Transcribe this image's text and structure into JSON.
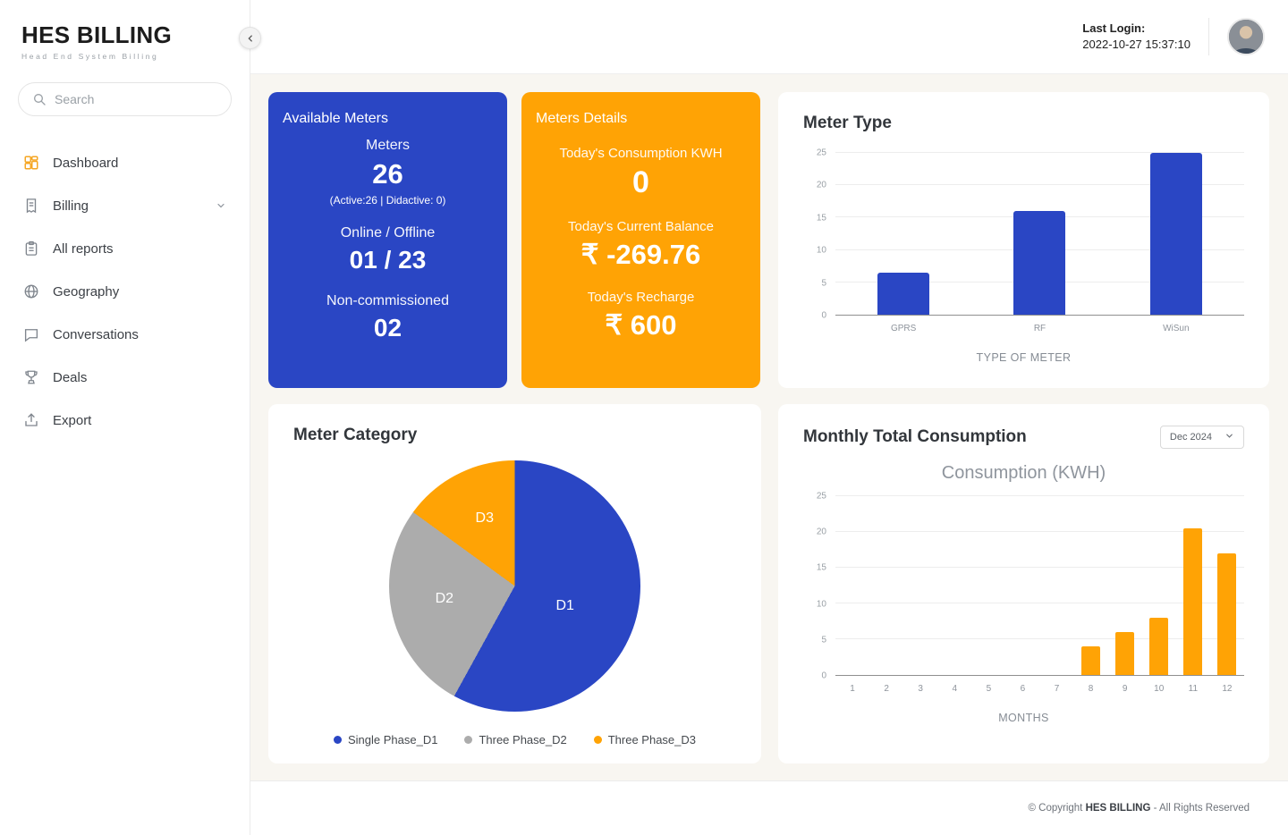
{
  "brand": {
    "name_primary": "HES",
    "name_secondary": " BILLING",
    "tagline": "Head End System Billing"
  },
  "header": {
    "last_login_label": "Last Login:",
    "last_login_value": "2022-10-27 15:37:10"
  },
  "sidebar": {
    "search_placeholder": "Search",
    "items": [
      {
        "label": "Dashboard",
        "icon": "dashboard-icon"
      },
      {
        "label": "Billing",
        "icon": "billing-icon",
        "expandable": true
      },
      {
        "label": "All reports",
        "icon": "reports-icon"
      },
      {
        "label": "Geography",
        "icon": "globe-icon"
      },
      {
        "label": "Conversations",
        "icon": "chat-icon"
      },
      {
        "label": "Deals",
        "icon": "deals-icon"
      },
      {
        "label": "Export",
        "icon": "export-icon"
      }
    ]
  },
  "summary_cards": {
    "available_meters": {
      "title": "Available Meters",
      "meters_label": "Meters",
      "meters_value": "26",
      "meters_note": "(Active:26 | Didactive: 0)",
      "online_label": "Online / Offline",
      "online_value": "01 / 23",
      "non_commissioned_label": "Non-commissioned",
      "non_commissioned_value": "02"
    },
    "meters_details": {
      "title": "Meters Details",
      "consumption_label": "Today's Consumption KWH",
      "consumption_value": "0",
      "balance_label": "Today's Current Balance",
      "balance_value": "₹ -269.76",
      "recharge_label": "Today's Recharge",
      "recharge_value": "₹ 600"
    }
  },
  "chart_data": [
    {
      "id": "meter_type",
      "type": "bar",
      "title": "Meter Type",
      "categories": [
        "GPRS",
        "RF",
        "WiSun"
      ],
      "values": [
        6.5,
        16,
        25
      ],
      "xlabel": "TYPE OF METER",
      "ylabel": "",
      "ylim": [
        0,
        25
      ],
      "yticks": [
        0,
        5,
        10,
        15,
        20,
        25
      ],
      "grid": true,
      "bar_color": "#2a46c4"
    },
    {
      "id": "meter_category",
      "type": "pie",
      "title": "Meter Category",
      "slices": [
        {
          "label": "D1",
          "legend": "Single Phase_D1",
          "value": 58,
          "color": "#2a46c4"
        },
        {
          "label": "D2",
          "legend": "Three Phase_D2",
          "value": 27,
          "color": "#acacac"
        },
        {
          "label": "D3",
          "legend": "Three Phase_D3",
          "value": 15,
          "color": "#ffa305"
        }
      ],
      "legend_position": "bottom",
      "start_angle_deg": 0,
      "direction": "clockwise"
    },
    {
      "id": "monthly_total_consumption",
      "type": "bar",
      "title": "Monthly Total Consumption",
      "subtitle": "Consumption (KWH)",
      "period_selector": "Dec 2024",
      "categories": [
        "1",
        "2",
        "3",
        "4",
        "5",
        "6",
        "7",
        "8",
        "9",
        "10",
        "11",
        "12"
      ],
      "values": [
        0,
        0,
        0,
        0,
        0,
        0,
        0,
        4,
        6,
        8,
        20.5,
        17
      ],
      "xlabel": "MONTHS",
      "ylabel": "",
      "ylim": [
        0,
        25
      ],
      "yticks": [
        0,
        5,
        10,
        15,
        20,
        25
      ],
      "grid": true,
      "bar_color": "#ffa305"
    }
  ],
  "footer": {
    "prefix": "© Copyright ",
    "brand": "HES BILLING",
    "suffix": " - All Rights Reserved"
  },
  "colors": {
    "primary_blue": "#2a46c4",
    "accent_orange": "#ffa305",
    "neutral_gray": "#acacac",
    "content_background": "#f8f6f1"
  }
}
